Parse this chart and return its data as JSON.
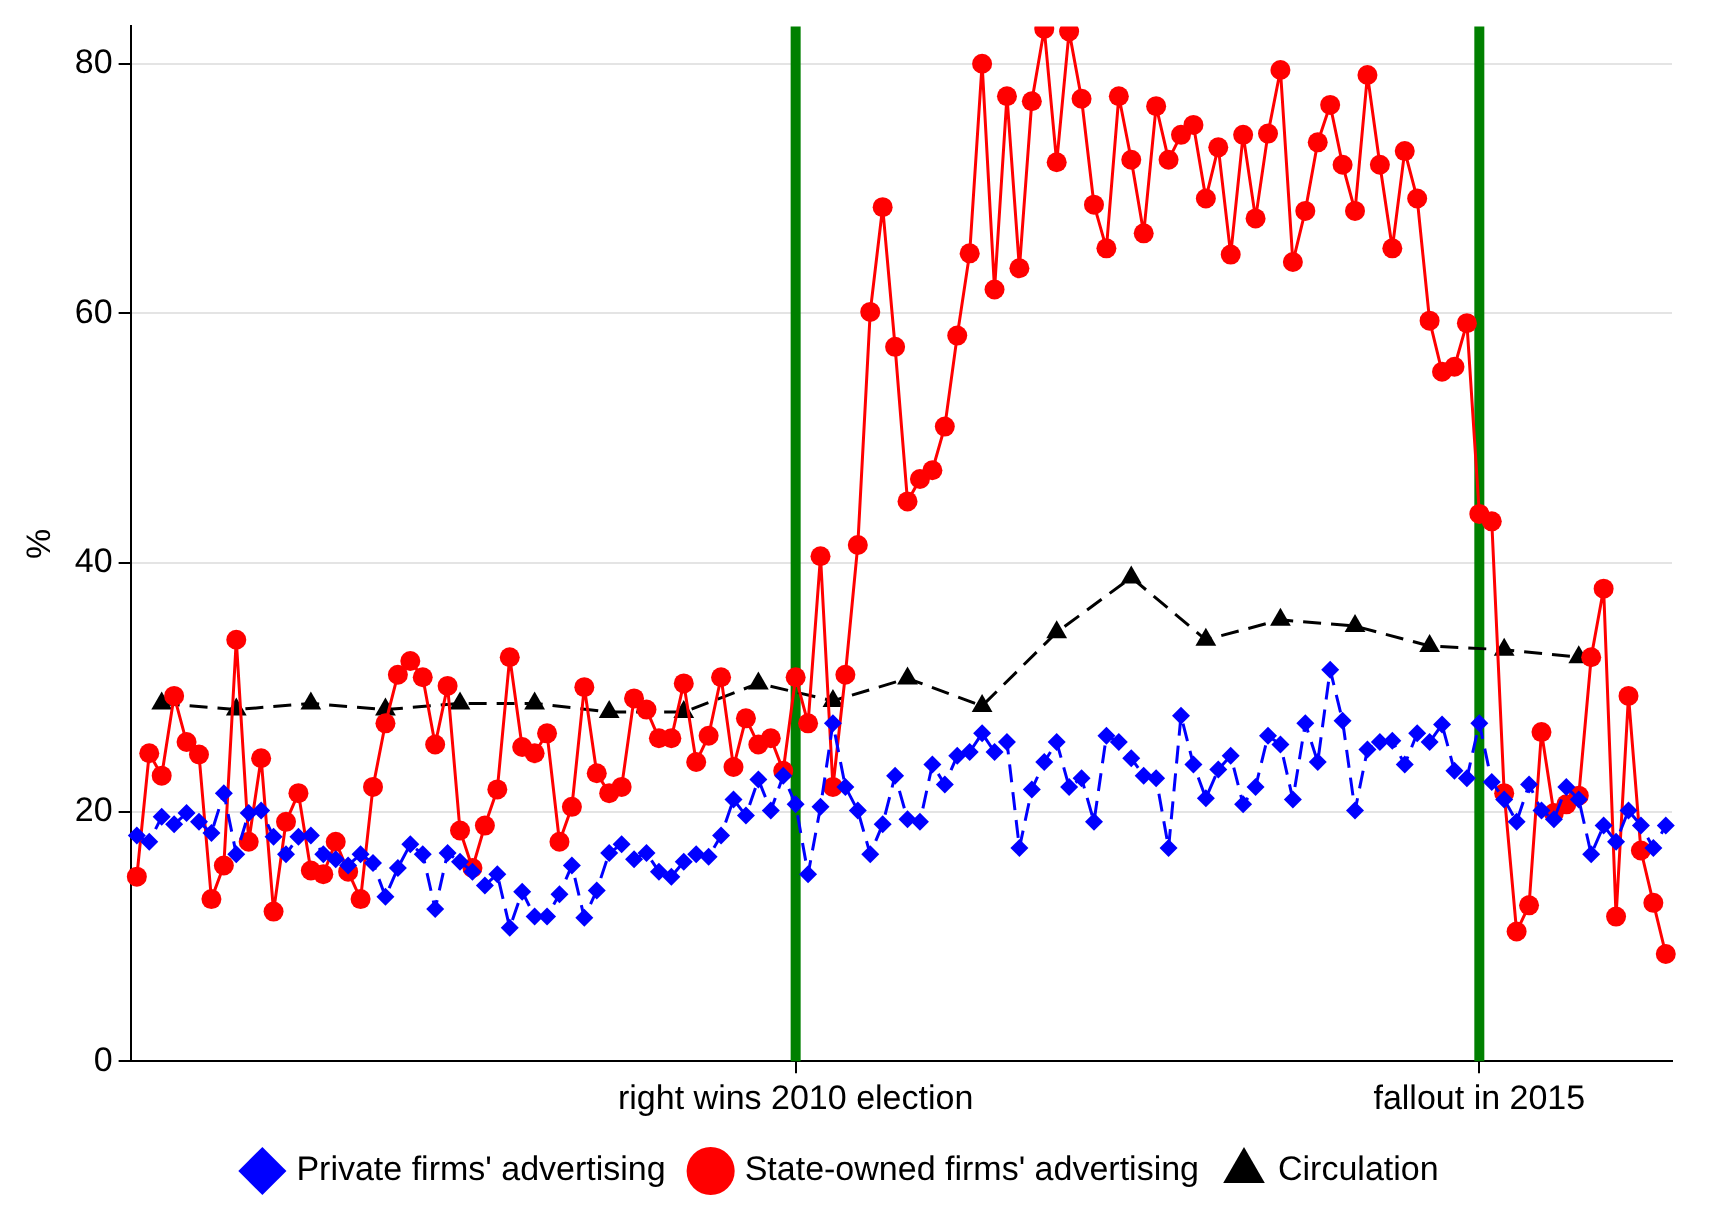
{
  "chart_data": {
    "type": "line",
    "ylabel": "%",
    "ylim": [
      0,
      83
    ],
    "yticks": [
      0,
      20,
      40,
      60,
      80
    ],
    "categories": [
      null,
      null,
      null,
      null,
      null,
      null,
      null,
      null,
      null,
      null,
      null,
      null,
      null,
      null,
      null,
      null,
      null,
      null,
      null,
      null,
      null,
      null,
      null,
      null,
      null,
      null,
      null,
      null,
      null,
      null,
      null,
      null,
      null,
      null,
      null,
      null,
      null,
      null,
      null,
      null,
      null,
      null,
      null,
      null,
      null,
      null,
      null,
      null,
      null,
      null,
      null,
      null,
      null,
      "right wins 2010 election",
      null,
      null,
      null,
      null,
      null,
      null,
      null,
      null,
      null,
      null,
      null,
      null,
      null,
      null,
      null,
      null,
      null,
      null,
      null,
      null,
      null,
      null,
      null,
      null,
      null,
      null,
      null,
      null,
      null,
      null,
      null,
      null,
      null,
      null,
      null,
      null,
      null,
      null,
      null,
      null,
      null,
      null,
      null,
      null,
      null,
      null,
      null,
      null,
      null,
      null,
      null,
      null,
      null,
      null,
      "fallout in 2015",
      null,
      null,
      null,
      null,
      null,
      null,
      null,
      null,
      null,
      null,
      null,
      null,
      null,
      null,
      null
    ],
    "series": [
      {
        "name": "Private firms' advertising",
        "color": "#0000ff",
        "marker": "diamond",
        "line_style": "dashed",
        "values": [
          18.1,
          17.6,
          19.6,
          19.0,
          19.9,
          19.2,
          18.3,
          21.5,
          16.6,
          19.9,
          20.1,
          18.0,
          16.6,
          18.0,
          18.1,
          16.6,
          16.2,
          15.7,
          16.6,
          15.9,
          13.2,
          15.5,
          17.4,
          16.6,
          12.2,
          16.7,
          16.0,
          15.2,
          14.1,
          15.0,
          10.7,
          13.6,
          11.6,
          11.6,
          13.4,
          15.7,
          11.5,
          13.7,
          16.7,
          17.4,
          16.2,
          16.7,
          15.2,
          14.8,
          16.0,
          16.6,
          16.4,
          18.1,
          21.0,
          19.7,
          22.6,
          20.1,
          22.9,
          20.6,
          15.0,
          20.4,
          27.1,
          22.0,
          20.1,
          16.6,
          19.0,
          22.9,
          19.4,
          19.2,
          23.8,
          22.2,
          24.5,
          24.8,
          26.3,
          24.8,
          25.6,
          17.1,
          21.8,
          24.0,
          25.6,
          22.0,
          22.7,
          19.2,
          26.1,
          25.6,
          24.3,
          22.9,
          22.7,
          17.1,
          27.7,
          23.8,
          21.1,
          23.4,
          24.5,
          20.6,
          22.0,
          26.1,
          25.4,
          21.0,
          27.1,
          24.0,
          31.4,
          27.3,
          20.1,
          25.0,
          25.6,
          25.7,
          23.8,
          26.3,
          25.6,
          27.0,
          23.3,
          22.7,
          27.1,
          22.4,
          21.0,
          19.2,
          22.2,
          20.1,
          19.4,
          22.0,
          21.0,
          16.6,
          18.9,
          17.6,
          20.1,
          18.9,
          17.1,
          18.9
        ]
      },
      {
        "name": "State-owned firms' advertising",
        "color": "#ff0000",
        "marker": "circle",
        "line_style": "solid",
        "values": [
          14.8,
          24.7,
          22.9,
          29.3,
          25.6,
          24.6,
          13.0,
          15.7,
          33.8,
          17.6,
          24.3,
          12.0,
          19.2,
          21.5,
          15.3,
          15.0,
          17.6,
          15.2,
          13.0,
          22.0,
          27.1,
          31.0,
          32.1,
          30.8,
          25.4,
          30.1,
          18.5,
          15.5,
          18.9,
          21.8,
          32.4,
          25.2,
          24.7,
          26.3,
          17.6,
          20.4,
          30.0,
          23.1,
          21.5,
          22.0,
          29.1,
          28.2,
          25.9,
          25.9,
          30.3,
          24.0,
          26.1,
          30.8,
          23.6,
          27.5,
          25.4,
          25.9,
          23.3,
          30.8,
          27.1,
          40.5,
          22.0,
          31.0,
          41.4,
          60.1,
          68.5,
          57.3,
          44.9,
          46.7,
          47.4,
          50.9,
          58.2,
          64.8,
          80.0,
          61.9,
          77.4,
          63.6,
          77.0,
          82.8,
          72.1,
          82.6,
          77.2,
          68.7,
          65.2,
          77.4,
          72.3,
          66.4,
          76.6,
          72.3,
          74.3,
          75.1,
          69.2,
          73.3,
          64.7,
          74.3,
          67.6,
          74.4,
          79.5,
          64.1,
          68.2,
          73.7,
          76.7,
          71.9,
          68.2,
          79.1,
          71.9,
          65.2,
          73.0,
          69.2,
          59.4,
          55.3,
          55.7,
          59.2,
          43.9,
          43.3,
          21.5,
          10.4,
          12.5,
          26.4,
          19.9,
          20.6,
          21.3,
          32.4,
          37.9,
          11.6,
          29.3,
          16.9,
          12.7,
          8.6
        ]
      },
      {
        "name": "Circulation",
        "color": "#000000",
        "marker": "triangle",
        "line_style": "dashed",
        "values": [
          null,
          null,
          28.7,
          null,
          null,
          null,
          null,
          null,
          28.2,
          null,
          null,
          null,
          null,
          null,
          28.7,
          null,
          null,
          null,
          null,
          null,
          28.2,
          null,
          null,
          null,
          null,
          null,
          28.7,
          null,
          null,
          null,
          null,
          null,
          28.7,
          null,
          null,
          null,
          null,
          null,
          28.0,
          null,
          null,
          null,
          null,
          null,
          28.0,
          null,
          null,
          null,
          null,
          null,
          30.3,
          null,
          null,
          null,
          null,
          null,
          28.9,
          null,
          null,
          null,
          null,
          null,
          30.7,
          null,
          null,
          null,
          null,
          null,
          28.5,
          null,
          null,
          null,
          null,
          null,
          34.4,
          null,
          null,
          null,
          null,
          null,
          38.8,
          null,
          null,
          null,
          null,
          null,
          33.8,
          null,
          null,
          null,
          null,
          null,
          35.4,
          null,
          null,
          null,
          null,
          null,
          34.9,
          null,
          null,
          null,
          null,
          null,
          33.3,
          null,
          null,
          null,
          null,
          null,
          33.0,
          null,
          null,
          null,
          null,
          null,
          32.4,
          null,
          null,
          null,
          null,
          null,
          null,
          null
        ]
      }
    ],
    "ref_lines": [
      {
        "axis": "x",
        "value": "right wins 2010 election",
        "color": "#008000"
      },
      {
        "axis": "x",
        "value": "fallout in 2015",
        "color": "#008000"
      }
    ],
    "grid": "y",
    "legend": "bottom"
  }
}
